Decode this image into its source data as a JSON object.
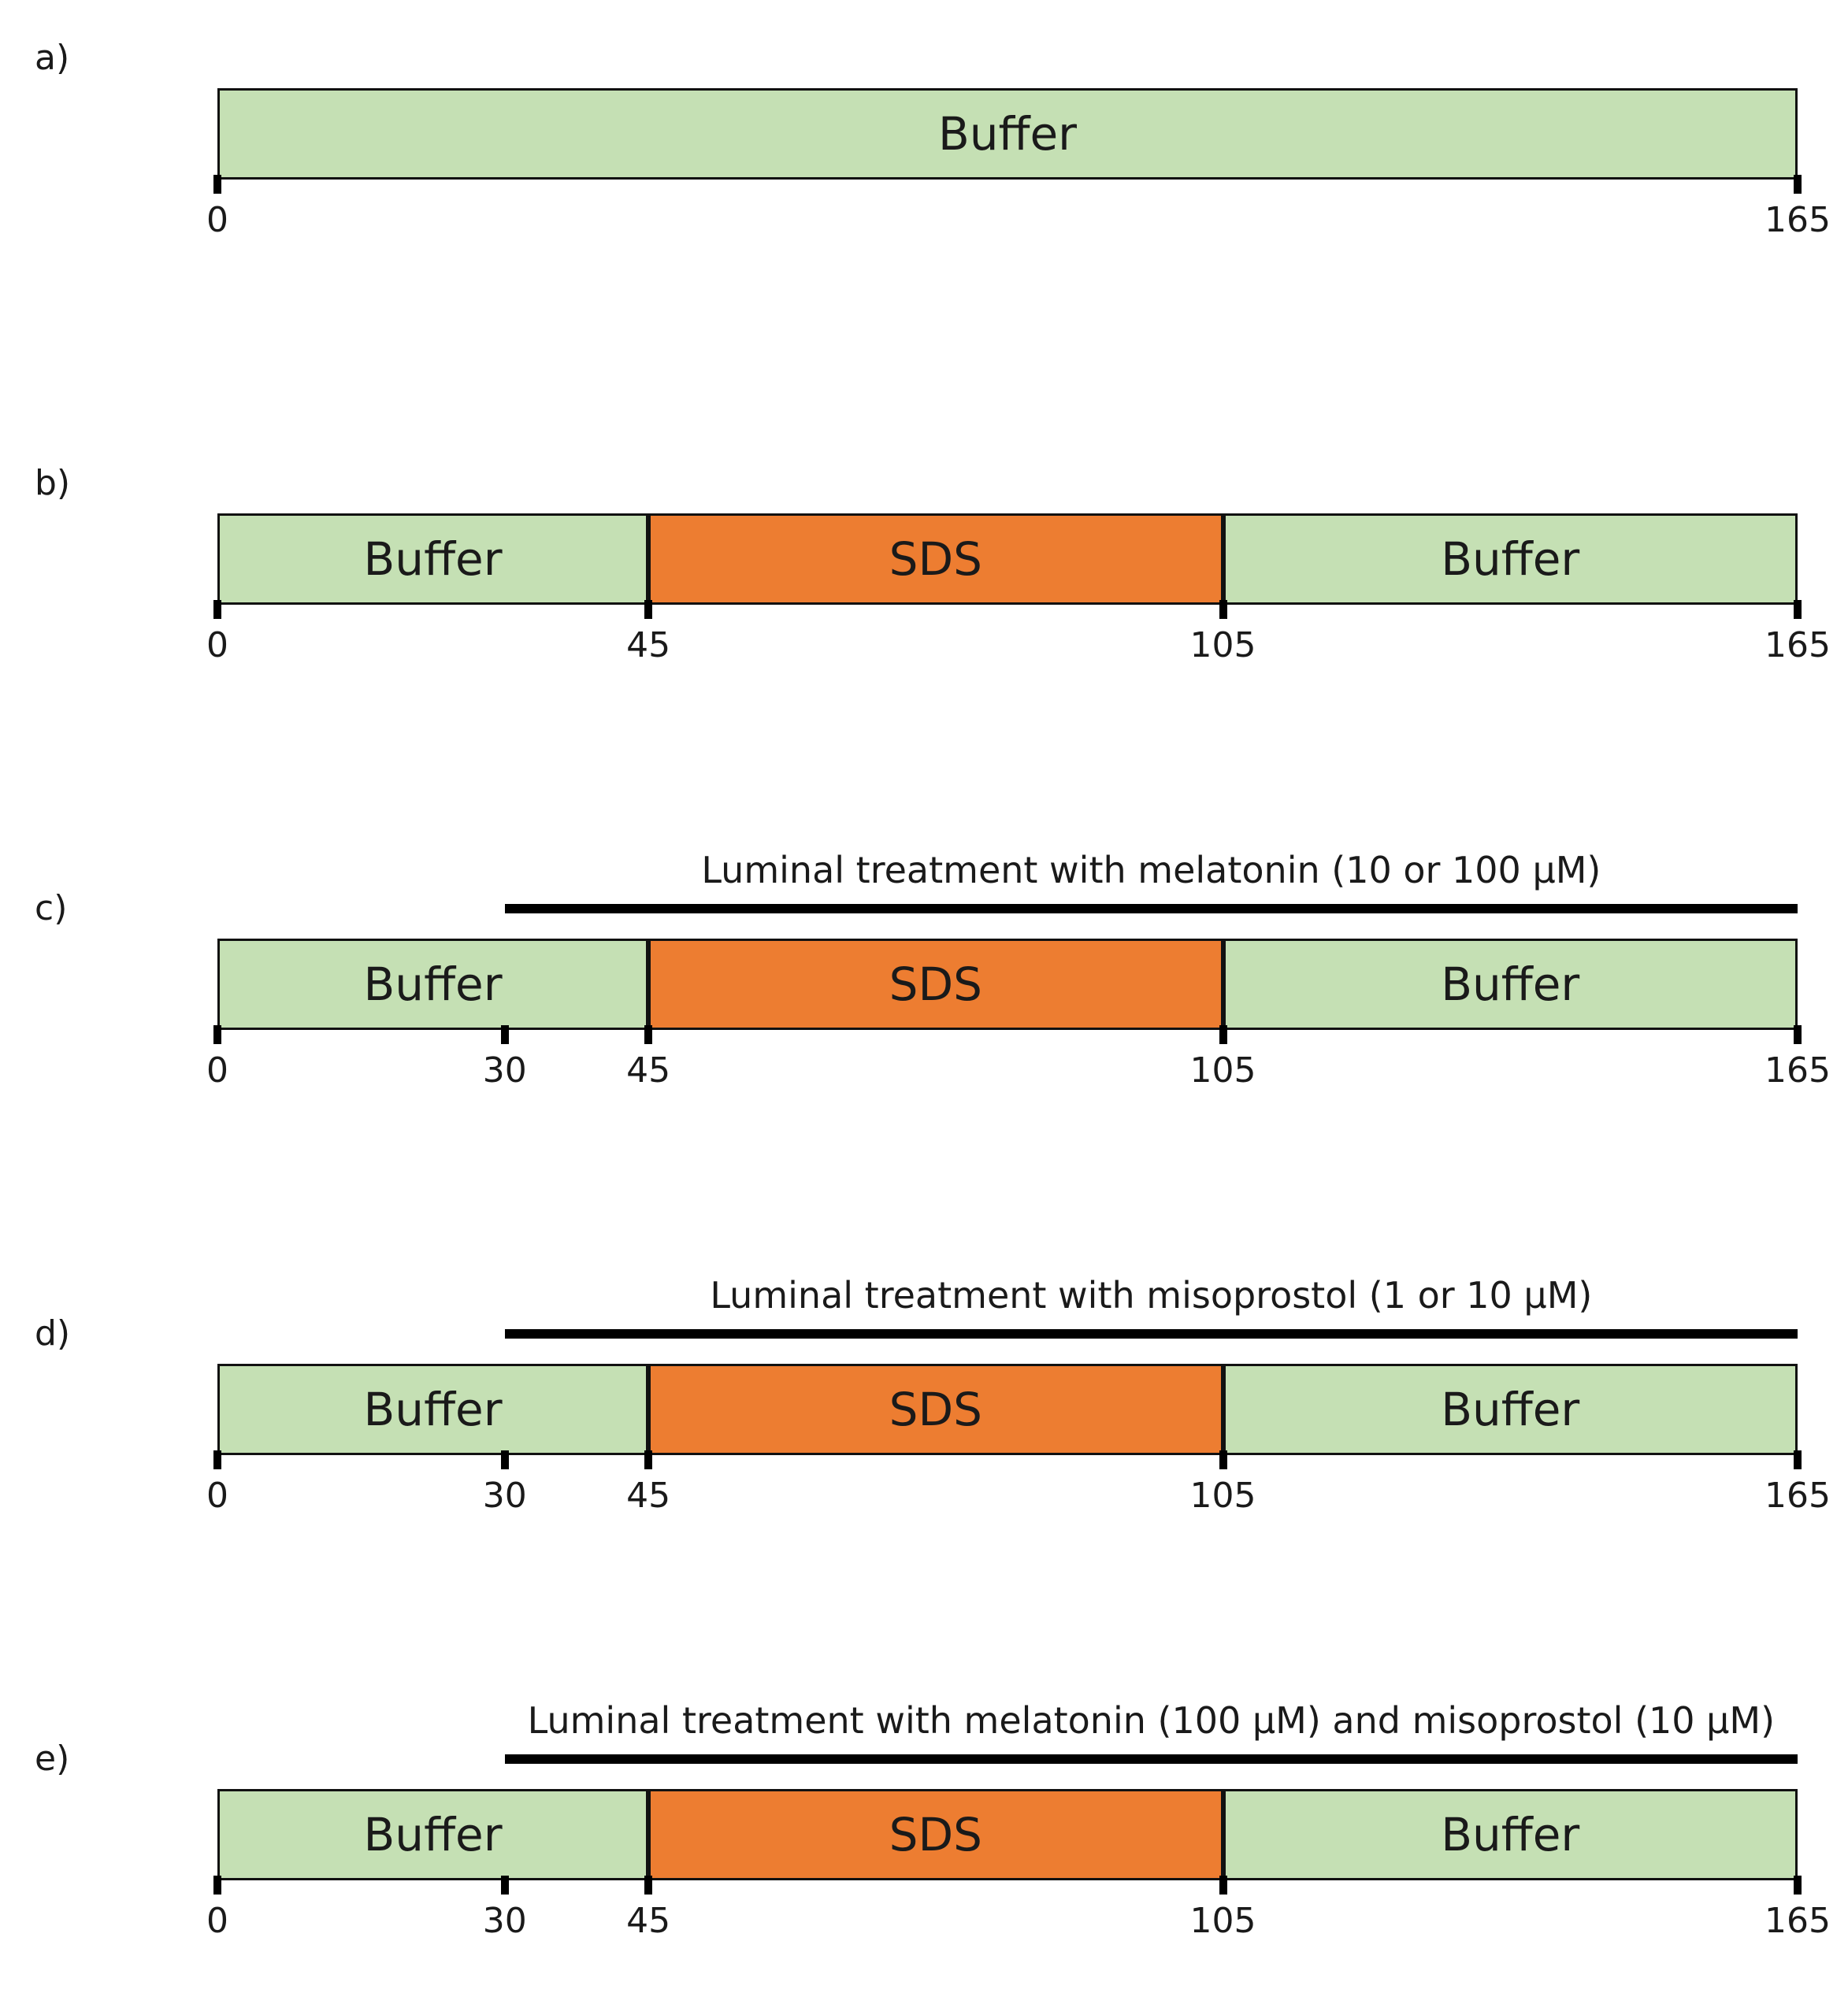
{
  "axis": {
    "min": 0,
    "max": 165
  },
  "panels": [
    {
      "label": "a)",
      "segments": [
        {
          "text": "Buffer",
          "kind": "buffer",
          "start": 0,
          "end": 165
        }
      ],
      "ticks": [
        {
          "value": 0,
          "text": "0"
        },
        {
          "value": 165,
          "text": "165"
        }
      ]
    },
    {
      "label": "b)",
      "segments": [
        {
          "text": "Buffer",
          "kind": "buffer",
          "start": 0,
          "end": 45
        },
        {
          "text": "SDS",
          "kind": "sds",
          "start": 45,
          "end": 105
        },
        {
          "text": "Buffer",
          "kind": "buffer",
          "start": 105,
          "end": 165
        }
      ],
      "ticks": [
        {
          "value": 0,
          "text": "0"
        },
        {
          "value": 45,
          "text": "45"
        },
        {
          "value": 105,
          "text": "105"
        },
        {
          "value": 165,
          "text": "165"
        }
      ]
    },
    {
      "label": "c)",
      "treatment": {
        "text": "Luminal treatment with melatonin (10 or 100 µM)",
        "start": 30,
        "end": 165
      },
      "segments": [
        {
          "text": "Buffer",
          "kind": "buffer",
          "start": 0,
          "end": 45
        },
        {
          "text": "SDS",
          "kind": "sds",
          "start": 45,
          "end": 105
        },
        {
          "text": "Buffer",
          "kind": "buffer",
          "start": 105,
          "end": 165
        }
      ],
      "ticks": [
        {
          "value": 0,
          "text": "0"
        },
        {
          "value": 30,
          "text": "30"
        },
        {
          "value": 45,
          "text": "45"
        },
        {
          "value": 105,
          "text": "105"
        },
        {
          "value": 165,
          "text": "165"
        }
      ]
    },
    {
      "label": "d)",
      "treatment": {
        "text": "Luminal treatment with misoprostol (1 or 10 µM)",
        "start": 30,
        "end": 165
      },
      "segments": [
        {
          "text": "Buffer",
          "kind": "buffer",
          "start": 0,
          "end": 45
        },
        {
          "text": "SDS",
          "kind": "sds",
          "start": 45,
          "end": 105
        },
        {
          "text": "Buffer",
          "kind": "buffer",
          "start": 105,
          "end": 165
        }
      ],
      "ticks": [
        {
          "value": 0,
          "text": "0"
        },
        {
          "value": 30,
          "text": "30"
        },
        {
          "value": 45,
          "text": "45"
        },
        {
          "value": 105,
          "text": "105"
        },
        {
          "value": 165,
          "text": "165"
        }
      ]
    },
    {
      "label": "e)",
      "treatment": {
        "text": "Luminal treatment with melatonin (100 µM) and misoprostol (10 µM)",
        "start": 30,
        "end": 165
      },
      "segments": [
        {
          "text": "Buffer",
          "kind": "buffer",
          "start": 0,
          "end": 45
        },
        {
          "text": "SDS",
          "kind": "sds",
          "start": 45,
          "end": 105
        },
        {
          "text": "Buffer",
          "kind": "buffer",
          "start": 105,
          "end": 165
        }
      ],
      "ticks": [
        {
          "value": 0,
          "text": "0"
        },
        {
          "value": 30,
          "text": "30"
        },
        {
          "value": 45,
          "text": "45"
        },
        {
          "value": 105,
          "text": "105"
        },
        {
          "value": 165,
          "text": "165"
        }
      ]
    }
  ],
  "colors": {
    "buffer": "#c5e0b4",
    "sds": "#ed7d31",
    "line": "#000000"
  }
}
